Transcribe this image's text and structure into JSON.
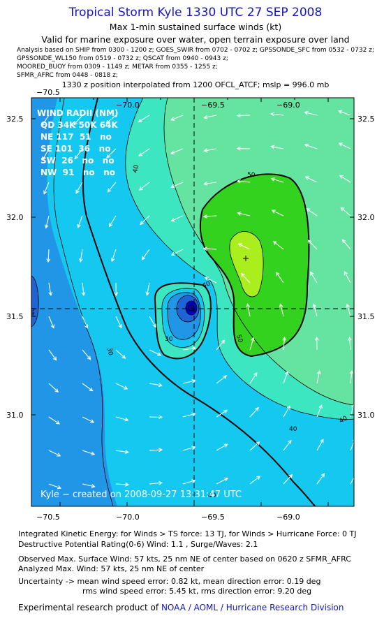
{
  "header": {
    "title": "Tropical Storm Kyle 1330 UTC 27 SEP 2008",
    "subtitle1": "Max 1-min sustained surface winds (kt)",
    "subtitle2": "Valid for marine exposure over water, open terrain exposure over land",
    "analysis_lines": [
      "Analysis based on   SHIP from 0300 - 1200 z;  GOES_SWIR from 0702 - 0702 z;  GPSSONDE_SFC from 0532 - 0732 z;",
      "GPSSONDE_WL150 from 0519 - 0732 z;  QSCAT from 0940 - 0943 z;",
      "MOORED_BUOY from 0309 - 1149 z;   METAR from 0355 - 1255 z;",
      "SFMR_AFRC from 0448 - 0818 z;"
    ],
    "interp_line": "1330 z position interpolated from 1200 OFCL_ATCF; mslp = 996.0 mb"
  },
  "map": {
    "top_ticks": [
      "−70.5",
      "−70.0",
      "−69.5",
      "−69.0"
    ],
    "bottom_ticks": [
      "−70.5",
      "−70.0",
      "−69.5",
      "−69.0"
    ],
    "left_ticks": [
      "32.5",
      "32.0",
      "31.5",
      "31.0"
    ],
    "right_ticks": [
      "32.5",
      "32.0",
      "31.5",
      "31.0"
    ],
    "contour_labels": [
      "50",
      "40",
      "40",
      "30",
      "30",
      "50",
      "40",
      "40",
      "40",
      "40"
    ],
    "colors": {
      "c_low": "#1e64d4",
      "c_20": "#2296e6",
      "c_30": "#14c8f0",
      "c_40": "#3ce6c0",
      "c_45": "#64e4a0",
      "c_50": "#32d21e",
      "c_55": "#aaee1e",
      "center_dark": "#0000c8",
      "title_blue": "#1515c8"
    },
    "center_symbol": "center-marker-icon",
    "max_wind_symbol": "plus-icon",
    "wind_radii": {
      "header": "WIND RADII (NM)",
      "columns": "QD 34K 50K 64K",
      "rows": [
        "NE 117  51   no",
        "SE 101  36   no",
        "SW  26   no   no",
        "NW  91   no   no"
      ]
    },
    "credit": "Kyle − created on 2008-09-27 13:31:47 UTC"
  },
  "footer": {
    "ike": "Integrated Kinetic Energy:  for Winds > TS force: 13 TJ,  for Winds > Hurricane Force: 0 TJ",
    "dpr": "Destructive Potential Rating(0-6)   Wind: 1.1 , Surge/Waves: 2.1",
    "observed": "Observed Max. Surface Wind: 57 kts, 25 nm NE of center based on 0620 z SFMR_AFRC",
    "analyzed": "Analyzed Max. Wind: 57 kts, 25 nm NE of center",
    "uncertainty1": "Uncertainty -> mean wind speed error: 0.82 kt,   mean direction error: 0.19 deg",
    "uncertainty2": "rms wind speed error: 5.45 kt,   rms direction error: 9.20 deg",
    "product_prefix": "Experimental research product of",
    "product_org": "NOAA / AOML / Hurricane Research Division"
  }
}
